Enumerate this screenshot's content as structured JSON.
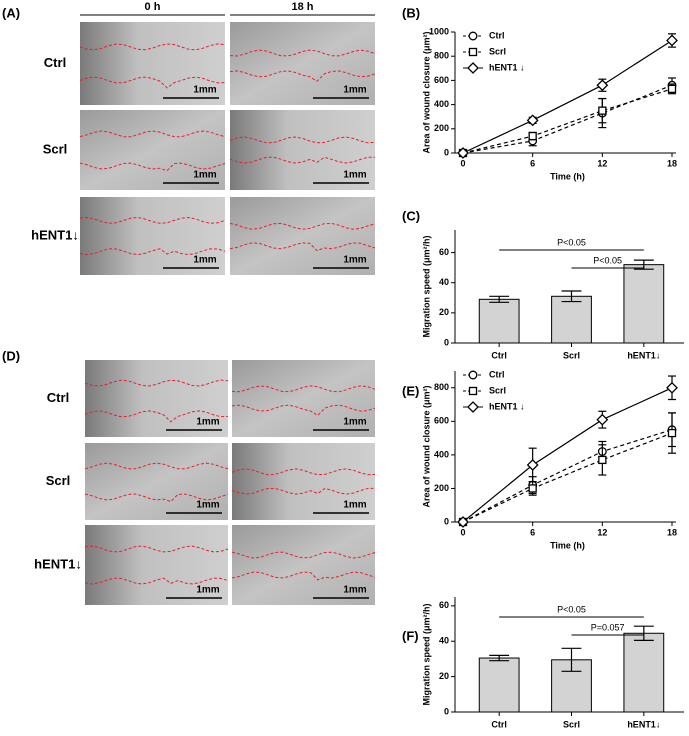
{
  "panels": [
    {
      "label": "(A)",
      "columns": [
        "0 h",
        "18 h"
      ],
      "rows": [
        "Ctrl",
        "Scrl",
        "hENT1↓"
      ],
      "scale_bar": "1mm"
    },
    {
      "label": "(D)",
      "rows": [
        "Ctrl",
        "Scrl",
        "hENT1↓"
      ],
      "scale_bar": "1mm"
    }
  ],
  "chart_data": [
    {
      "type": "line",
      "label": "(B)",
      "x_label": "Time (h)",
      "y_label": "Area of wound closure (μm²)",
      "x": [
        0,
        6,
        12,
        18
      ],
      "xlim": [
        0,
        18
      ],
      "xticks": [
        0,
        6,
        12,
        18
      ],
      "ylim": [
        0,
        1000
      ],
      "yticks": [
        0,
        200,
        400,
        600,
        800,
        1000
      ],
      "series": [
        {
          "name": "Ctrl",
          "color": "#000000",
          "marker": "circle",
          "dashed": true,
          "values": [
            0,
            100,
            330,
            560
          ],
          "errors": [
            0,
            40,
            120,
            60
          ]
        },
        {
          "name": "Scrl",
          "color": "#000000",
          "marker": "square",
          "dashed": true,
          "values": [
            0,
            140,
            350,
            530
          ],
          "errors": [
            0,
            30,
            100,
            40
          ]
        },
        {
          "name": "hENT1 ↓",
          "color": "#000000",
          "marker": "diamond",
          "dashed": false,
          "values": [
            0,
            270,
            560,
            930
          ],
          "errors": [
            0,
            25,
            50,
            55
          ]
        }
      ]
    },
    {
      "type": "bar",
      "label": "(C)",
      "y_label": "Migration speed (μm²/h)",
      "categories": [
        "Ctrl",
        "Scrl",
        "hENT1↓"
      ],
      "values": [
        29,
        31,
        52
      ],
      "errors": [
        2,
        3.5,
        3
      ],
      "color": "#d3d3d3",
      "ylim": [
        0,
        75
      ],
      "yticks": [
        0,
        20,
        40,
        60
      ],
      "annotations": [
        "P<0.05",
        "P<0.05"
      ]
    },
    {
      "type": "line",
      "label": "(E)",
      "x_label": "Time (h)",
      "y_label": "Area of wound closure (μm²)",
      "x": [
        0,
        6,
        12,
        18
      ],
      "xlim": [
        0,
        18
      ],
      "xticks": [
        0,
        6,
        12,
        18
      ],
      "ylim": [
        0,
        900
      ],
      "yticks": [
        0,
        200,
        400,
        600,
        800
      ],
      "series": [
        {
          "name": "Ctrl",
          "color": "#000000",
          "marker": "circle",
          "dashed": true,
          "values": [
            0,
            220,
            420,
            550
          ],
          "errors": [
            0,
            50,
            60,
            100
          ]
        },
        {
          "name": "Scrl",
          "color": "#000000",
          "marker": "square",
          "dashed": true,
          "values": [
            0,
            200,
            370,
            530
          ],
          "errors": [
            0,
            40,
            90,
            120
          ]
        },
        {
          "name": "hENT1 ↓",
          "color": "#000000",
          "marker": "diamond",
          "dashed": false,
          "values": [
            0,
            340,
            610,
            800
          ],
          "errors": [
            0,
            100,
            50,
            70
          ]
        }
      ]
    },
    {
      "type": "bar",
      "label": "(F)",
      "y_label": "Migration speed (μm²/h)",
      "categories": [
        "Ctrl",
        "Scrl",
        "hENT1↓"
      ],
      "values": [
        30.5,
        29.5,
        44.5
      ],
      "errors": [
        1.5,
        6.5,
        4
      ],
      "color": "#d3d3d3",
      "ylim": [
        0,
        65
      ],
      "yticks": [
        0,
        20,
        40,
        60
      ],
      "annotations": [
        "P<0.05",
        "P=0.057"
      ]
    }
  ]
}
